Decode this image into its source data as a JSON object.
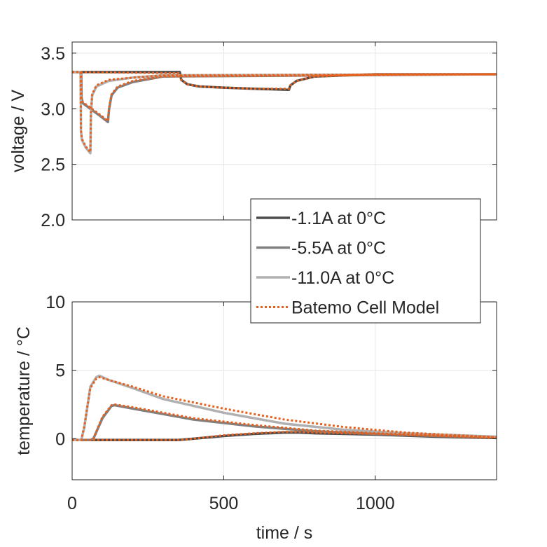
{
  "chart_data": [
    {
      "type": "line",
      "title": "",
      "xlabel": "",
      "ylabel": "voltage / V",
      "xlim": [
        0,
        1400
      ],
      "ylim": [
        2.0,
        3.6
      ],
      "xticks": [
        0,
        500,
        1000
      ],
      "yticks": [
        2.0,
        2.5,
        3.0,
        3.5
      ],
      "ytick_labels": [
        "2.0",
        "2.5",
        "3.0",
        "3.5"
      ],
      "grid": true,
      "series": [
        {
          "name": "-1.1A at 0°C",
          "color": "#4d4d4d",
          "style": "solid",
          "x": [
            0,
            355,
            360,
            380,
            420,
            500,
            600,
            715,
            720,
            740,
            800,
            1000,
            1400
          ],
          "y": [
            3.33,
            3.33,
            3.26,
            3.22,
            3.2,
            3.19,
            3.18,
            3.17,
            3.21,
            3.25,
            3.29,
            3.31,
            3.31
          ]
        },
        {
          "name": "-5.5A at 0°C",
          "color": "#808080",
          "style": "solid",
          "x": [
            0,
            30,
            31,
            35,
            60,
            90,
            118,
            122,
            130,
            150,
            200,
            300,
            1400
          ],
          "y": [
            3.33,
            3.33,
            3.1,
            3.05,
            3.0,
            2.94,
            2.88,
            3.0,
            3.12,
            3.19,
            3.24,
            3.29,
            3.31
          ]
        },
        {
          "name": "-11.0A at 0°C",
          "color": "#b0b0b0",
          "style": "solid",
          "x": [
            0,
            28,
            29,
            32,
            45,
            60,
            62,
            66,
            80,
            120,
            200,
            300,
            1400
          ],
          "y": [
            3.33,
            3.33,
            2.8,
            2.72,
            2.65,
            2.6,
            2.95,
            3.12,
            3.2,
            3.25,
            3.28,
            3.3,
            3.31
          ]
        },
        {
          "name": "Batemo Cell Model",
          "color": "#e8601c",
          "style": "dotted",
          "segments": [
            {
              "x": [
                0,
                355,
                360,
                380,
                420,
                500,
                600,
                715,
                720,
                740,
                800,
                1000,
                1400
              ],
              "y": [
                3.33,
                3.32,
                3.26,
                3.22,
                3.2,
                3.19,
                3.18,
                3.18,
                3.21,
                3.25,
                3.29,
                3.31,
                3.31
              ]
            },
            {
              "x": [
                0,
                30,
                31,
                35,
                60,
                90,
                118,
                122,
                130,
                150,
                200,
                300,
                1400
              ],
              "y": [
                3.33,
                3.33,
                3.1,
                3.06,
                3.01,
                2.95,
                2.89,
                3.01,
                3.13,
                3.2,
                3.25,
                3.29,
                3.31
              ]
            },
            {
              "x": [
                0,
                28,
                29,
                32,
                45,
                60,
                62,
                66,
                80,
                120,
                200,
                300,
                1400
              ],
              "y": [
                3.33,
                3.33,
                2.81,
                2.73,
                2.66,
                2.61,
                2.96,
                3.13,
                3.21,
                3.26,
                3.28,
                3.3,
                3.31
              ]
            }
          ]
        }
      ],
      "legend": {
        "position": "bottom-right",
        "entries": [
          "-1.1A at 0°C",
          "-5.5A at 0°C",
          "-11.0A at 0°C",
          "Batemo Cell Model"
        ]
      }
    },
    {
      "type": "line",
      "title": "",
      "xlabel": "time / s",
      "ylabel": "temperature / °C",
      "xlim": [
        0,
        1400
      ],
      "ylim": [
        -3,
        10
      ],
      "xticks": [
        0,
        500,
        1000
      ],
      "xtick_labels": [
        "0",
        "500",
        "1000"
      ],
      "yticks": [
        0,
        5,
        10
      ],
      "ytick_labels": [
        "0",
        "5",
        "10"
      ],
      "grid": true,
      "series": [
        {
          "name": "-1.1A at 0°C",
          "color": "#4d4d4d",
          "style": "solid",
          "x": [
            0,
            200,
            350,
            400,
            500,
            600,
            700,
            750,
            800,
            1000,
            1200,
            1400
          ],
          "y": [
            -0.1,
            -0.1,
            -0.1,
            0.0,
            0.2,
            0.35,
            0.45,
            0.45,
            0.4,
            0.3,
            0.15,
            0.05
          ]
        },
        {
          "name": "-5.5A at 0°C",
          "color": "#808080",
          "style": "solid",
          "x": [
            0,
            60,
            70,
            100,
            130,
            140,
            200,
            300,
            400,
            600,
            800,
            1000,
            1200,
            1400
          ],
          "y": [
            -0.1,
            -0.1,
            0.0,
            1.5,
            2.4,
            2.45,
            2.2,
            1.8,
            1.4,
            0.9,
            0.55,
            0.35,
            0.2,
            0.1
          ]
        },
        {
          "name": "-11.0A at 0°C",
          "color": "#b0b0b0",
          "style": "solid",
          "x": [
            0,
            30,
            40,
            60,
            80,
            90,
            120,
            200,
            300,
            500,
            700,
            900,
            1100,
            1400
          ],
          "y": [
            -0.1,
            -0.1,
            0.8,
            3.8,
            4.5,
            4.6,
            4.3,
            3.7,
            2.9,
            1.9,
            1.1,
            0.65,
            0.4,
            0.15
          ]
        },
        {
          "name": "Batemo Cell Model",
          "color": "#e8601c",
          "style": "dotted",
          "segments": [
            {
              "x": [
                0,
                200,
                350,
                400,
                500,
                600,
                700,
                750,
                800,
                1000,
                1200,
                1400
              ],
              "y": [
                -0.1,
                -0.1,
                -0.1,
                0.0,
                0.25,
                0.4,
                0.5,
                0.5,
                0.45,
                0.35,
                0.2,
                0.05
              ]
            },
            {
              "x": [
                0,
                60,
                70,
                100,
                130,
                140,
                200,
                300,
                400,
                600,
                800,
                1000,
                1200,
                1400
              ],
              "y": [
                -0.1,
                -0.1,
                0.0,
                1.6,
                2.45,
                2.5,
                2.3,
                1.9,
                1.5,
                1.0,
                0.6,
                0.4,
                0.25,
                0.1
              ]
            },
            {
              "x": [
                0,
                30,
                40,
                60,
                80,
                90,
                120,
                200,
                300,
                500,
                700,
                900,
                1100,
                1400
              ],
              "y": [
                -0.1,
                -0.1,
                0.9,
                3.7,
                4.4,
                4.5,
                4.3,
                3.8,
                3.1,
                2.2,
                1.4,
                0.85,
                0.45,
                0.1
              ]
            }
          ]
        }
      ]
    }
  ]
}
